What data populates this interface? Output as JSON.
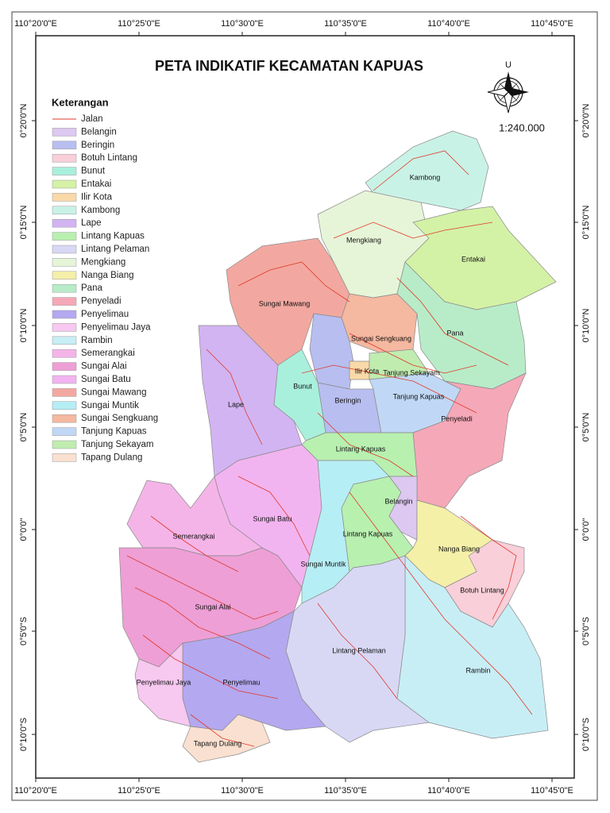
{
  "title": "PETA INDIKATIF KECAMATAN KAPUAS",
  "north_label": "U",
  "scale": "1:240.000",
  "grid_labels": {
    "top": [
      "110°20'0\"E",
      "110°25'0\"E",
      "110°30'0\"E",
      "110°35'0\"E",
      "110°40'0\"E",
      "110°45'0\"E"
    ],
    "bottom": [
      "110°20'0\"E",
      "110°25'0\"E",
      "110°30'0\"E",
      "110°35'0\"E",
      "110°40'0\"E",
      "110°45'0\"E"
    ],
    "left": [
      "0°20'0\"N",
      "0°15'0\"N",
      "0°10'0\"N",
      "0°5'0\"N",
      "0°0'0\"",
      "0°5'0\"S",
      "0°10'0\"S"
    ],
    "right": [
      "0°20'0\"N",
      "0°15'0\"N",
      "0°10'0\"N",
      "0°5'0\"N",
      "0°0'0\"",
      "0°5'0\"S",
      "0°10'0\"S"
    ]
  },
  "legend": {
    "title": "Keterangan",
    "road": {
      "name": "Jalan",
      "color": "#e03a2a"
    },
    "items": [
      {
        "name": "Belangin",
        "color": "#dcc8f0"
      },
      {
        "name": "Beringin",
        "color": "#b8bef0"
      },
      {
        "name": "Botuh Lintang",
        "color": "#f9cfd9"
      },
      {
        "name": "Bunut",
        "color": "#a9f0dc"
      },
      {
        "name": "Entakai",
        "color": "#d4f2a6"
      },
      {
        "name": "Ilir Kota",
        "color": "#f9d9a8"
      },
      {
        "name": "Kambong",
        "color": "#c9f2e6"
      },
      {
        "name": "Lape",
        "color": "#d2b4f2"
      },
      {
        "name": "Lintang Kapuas",
        "color": "#b8f0b0"
      },
      {
        "name": "Lintang Pelaman",
        "color": "#d8d8f5"
      },
      {
        "name": "Mengkiang",
        "color": "#e6f5d8"
      },
      {
        "name": "Nanga Biang",
        "color": "#f5f0a8"
      },
      {
        "name": "Pana",
        "color": "#b8ecc8"
      },
      {
        "name": "Penyeladi",
        "color": "#f5a8b8"
      },
      {
        "name": "Penyelimau",
        "color": "#b4a8f0"
      },
      {
        "name": "Penyelimau Jaya",
        "color": "#f7c8f0"
      },
      {
        "name": "Rambin",
        "color": "#c8eef5"
      },
      {
        "name": "Semerangkai",
        "color": "#f5b4e8"
      },
      {
        "name": "Sungai Alai",
        "color": "#ee9fd6"
      },
      {
        "name": "Sungai Batu",
        "color": "#f2b4f0"
      },
      {
        "name": "Sungai Mawang",
        "color": "#f2a8a0"
      },
      {
        "name": "Sungai Muntik",
        "color": "#b6eef5"
      },
      {
        "name": "Sungai Sengkuang",
        "color": "#f5b8a0"
      },
      {
        "name": "Tanjung Kapuas",
        "color": "#c0d8f5"
      },
      {
        "name": "Tanjung Sekayam",
        "color": "#c0ecb0"
      },
      {
        "name": "Tapang Dulang",
        "color": "#fae0d0"
      }
    ]
  },
  "map_labels": [
    "Kambong",
    "Mengkiang",
    "Entakai",
    "Sungai Mawang",
    "Pana",
    "Sungai Sengkuang",
    "Ilir Kota",
    "Tanjung Sekayam",
    "Bunut",
    "Tanjung Kapuas",
    "Beringin",
    "Lape",
    "Penyeladi",
    "Lintang Kapuas",
    "Belangin",
    "Sungai Batu",
    "Semerangkai",
    "Lintang Kapuas",
    "Nanga Biang",
    "Sungai Muntik",
    "Botuh Lintang",
    "Sungai Alai",
    "Lintang Pelaman",
    "Rambin",
    "Penyelimau Jaya",
    "Penyelimau",
    "Tapang Dulang"
  ]
}
